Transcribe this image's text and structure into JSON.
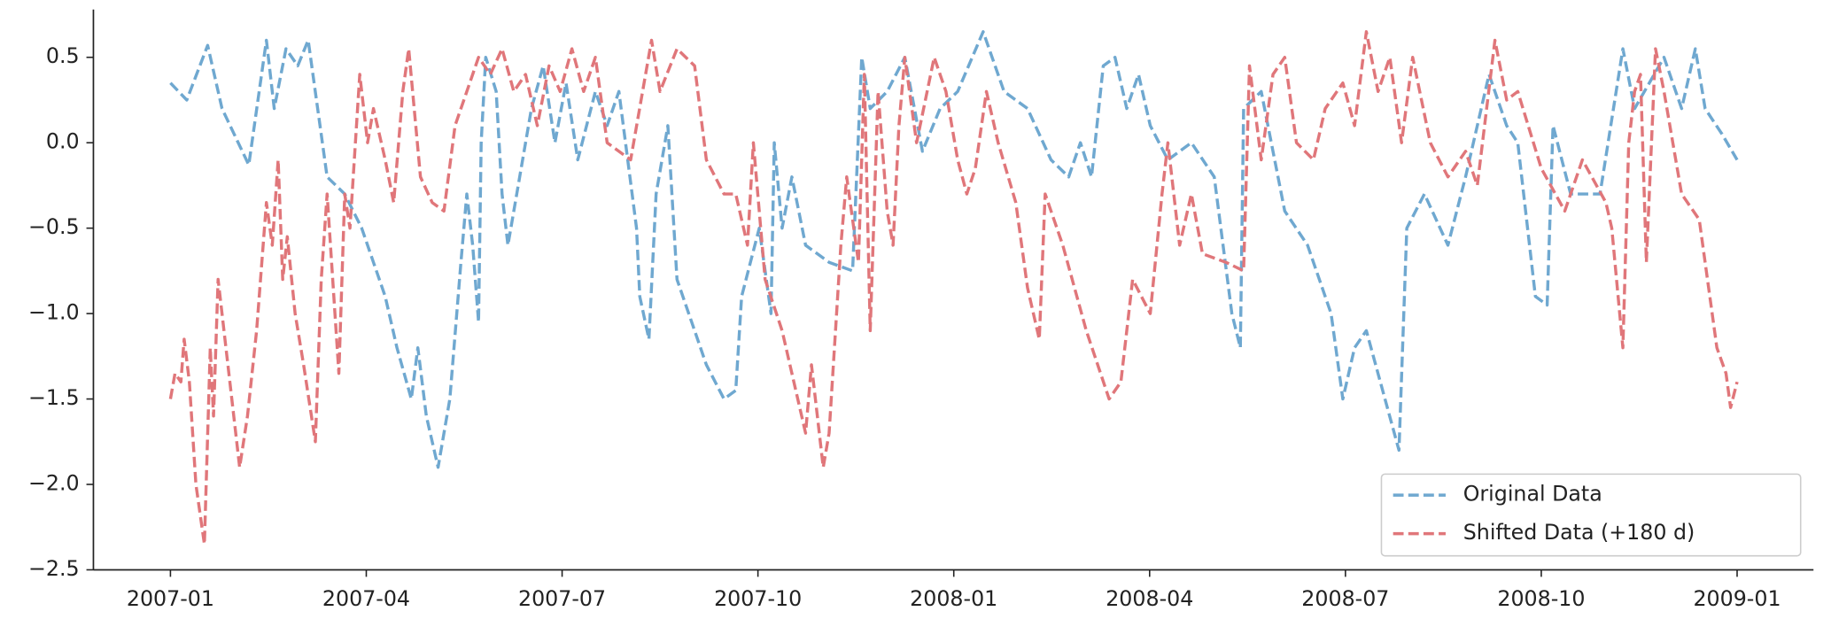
{
  "chart_data": {
    "type": "line",
    "xlim": [
      -1.18,
      25.17
    ],
    "xticks": [
      {
        "value": 0,
        "label": "2007-01"
      },
      {
        "value": 3,
        "label": "2007-04"
      },
      {
        "value": 6,
        "label": "2007-07"
      },
      {
        "value": 9,
        "label": "2007-10"
      },
      {
        "value": 12,
        "label": "2008-01"
      },
      {
        "value": 15,
        "label": "2008-04"
      },
      {
        "value": 18,
        "label": "2008-07"
      },
      {
        "value": 21,
        "label": "2008-10"
      },
      {
        "value": 24,
        "label": "2009-01"
      }
    ],
    "ylim": [
      -2.5,
      0.78
    ],
    "yticks": [
      0.5,
      {
        "value": 0,
        "label": "0.0"
      },
      {
        "value": -0.5,
        "label": "−0.5"
      },
      {
        "value": -1,
        "label": "−1.0"
      },
      {
        "value": -1.5,
        "label": "−1.5"
      },
      {
        "value": -2,
        "label": "−2.0"
      },
      {
        "value": -2.5,
        "label": "−2.5"
      }
    ],
    "legend": "lower right",
    "series": [
      {
        "name": "Original Data",
        "color": "#6fa8d0",
        "x": [
          0,
          0.25,
          0.5,
          0.57,
          0.79,
          1.2,
          1.47,
          1.59,
          1.77,
          1.95,
          2.11,
          2.4,
          2.67,
          2.93,
          3.29,
          3.47,
          3.69,
          3.79,
          3.92,
          4.1,
          4.28,
          4.45,
          4.54,
          4.63,
          4.72,
          4.76,
          4.83,
          4.99,
          5.08,
          5.17,
          5.35,
          5.53,
          5.71,
          5.89,
          6.06,
          6.24,
          6.51,
          6.69,
          6.87,
          7.14,
          7.19,
          7.33,
          7.44,
          7.62,
          7.76,
          8.03,
          8.21,
          8.48,
          8.66,
          8.75,
          9.02,
          9.2,
          9.25,
          9.37,
          9.52,
          9.73,
          10.09,
          10.45,
          10.59,
          10.72,
          10.98,
          11.25,
          11.52,
          11.79,
          12.06,
          12.45,
          12.77,
          13.13,
          13.49,
          13.76,
          13.94,
          14.11,
          14.29,
          14.47,
          14.65,
          14.83,
          15.01,
          15.28,
          15.64,
          15.99,
          16.26,
          16.39,
          16.44,
          16.71,
          17.07,
          17.42,
          17.78,
          17.96,
          18.14,
          18.32,
          18.82,
          18.94,
          19.21,
          19.57,
          19.84,
          20.2,
          20.47,
          20.64,
          20.91,
          21.09,
          21.18,
          21.45,
          21.9,
          22.25,
          22.43,
          22.88,
          23.15,
          23.36,
          23.51,
          23.77,
          24
        ],
        "values": [
          0.35,
          0.25,
          0.5,
          0.57,
          0.2,
          -0.13,
          0.6,
          0.2,
          0.55,
          0.45,
          0.6,
          -0.2,
          -0.3,
          -0.5,
          -0.9,
          -1.2,
          -1.5,
          -1.2,
          -1.6,
          -1.9,
          -1.5,
          -0.7,
          -0.3,
          -0.6,
          -1.05,
          0.0,
          0.5,
          0.3,
          -0.3,
          -0.6,
          -0.2,
          0.2,
          0.45,
          0.0,
          0.35,
          -0.1,
          0.3,
          0.1,
          0.3,
          -0.5,
          -0.9,
          -1.15,
          -0.3,
          0.1,
          -0.8,
          -1.1,
          -1.3,
          -1.5,
          -1.45,
          -0.9,
          -0.5,
          -1.0,
          0.0,
          -0.5,
          -0.2,
          -0.6,
          -0.7,
          -0.75,
          0.5,
          0.2,
          0.3,
          0.5,
          -0.05,
          0.2,
          0.3,
          0.65,
          0.3,
          0.2,
          -0.1,
          -0.2,
          0.0,
          -0.2,
          0.45,
          0.5,
          0.2,
          0.4,
          0.1,
          -0.1,
          0.0,
          -0.2,
          -1.0,
          -1.2,
          0.2,
          0.3,
          -0.4,
          -0.6,
          -1.0,
          -1.5,
          -1.2,
          -1.1,
          -1.8,
          -0.5,
          -0.3,
          -0.6,
          -0.2,
          0.4,
          0.1,
          0.0,
          -0.9,
          -0.95,
          0.1,
          -0.3,
          -0.3,
          0.55,
          0.2,
          0.5,
          0.2,
          0.55,
          0.2,
          0.05,
          -0.1
        ]
      },
      {
        "name": "Shifted Data (+180 d)",
        "color": "#e0767a",
        "x": [
          0,
          0.07,
          0.16,
          0.21,
          0.29,
          0.39,
          0.52,
          0.61,
          0.66,
          0.73,
          0.88,
          0.97,
          1.06,
          1.18,
          1.32,
          1.47,
          1.56,
          1.65,
          1.72,
          1.79,
          1.91,
          2.04,
          2.22,
          2.31,
          2.4,
          2.58,
          2.67,
          2.75,
          2.9,
          3.02,
          3.11,
          3.29,
          3.42,
          3.56,
          3.65,
          3.83,
          4.01,
          4.19,
          4.36,
          4.54,
          4.72,
          4.9,
          5.08,
          5.26,
          5.44,
          5.62,
          5.8,
          5.97,
          6.15,
          6.33,
          6.51,
          6.69,
          7.05,
          7.37,
          7.5,
          7.76,
          8.03,
          8.21,
          8.48,
          8.66,
          8.84,
          8.93,
          9.11,
          9.37,
          9.55,
          9.73,
          9.82,
          10,
          10.09,
          10.27,
          10.36,
          10.54,
          10.63,
          10.72,
          10.84,
          10.98,
          11.07,
          11.16,
          11.25,
          11.43,
          11.7,
          11.88,
          12.06,
          12.2,
          12.33,
          12.5,
          12.68,
          12.95,
          13.13,
          13.31,
          13.4,
          13.67,
          14.03,
          14.38,
          14.56,
          14.74,
          15.01,
          15.19,
          15.28,
          15.46,
          15.64,
          15.81,
          16.17,
          16.44,
          16.53,
          16.71,
          16.89,
          17.07,
          17.25,
          17.51,
          17.69,
          17.96,
          18.14,
          18.32,
          18.5,
          18.68,
          18.86,
          19.03,
          19.3,
          19.57,
          19.84,
          20.02,
          20.29,
          20.47,
          20.64,
          21,
          21.36,
          21.63,
          21.99,
          22.08,
          22.25,
          22.34,
          22.43,
          22.52,
          22.61,
          22.75,
          22.88,
          23.15,
          23.42,
          23.69,
          23.83,
          23.9,
          24
        ],
        "values": [
          -1.5,
          -1.35,
          -1.4,
          -1.15,
          -1.4,
          -2.0,
          -2.35,
          -1.2,
          -1.6,
          -0.8,
          -1.3,
          -1.6,
          -1.9,
          -1.6,
          -1.1,
          -0.35,
          -0.6,
          -0.1,
          -0.8,
          -0.55,
          -1.0,
          -1.3,
          -1.75,
          -0.8,
          -0.3,
          -1.35,
          -0.3,
          -0.5,
          0.4,
          0.0,
          0.2,
          -0.1,
          -0.35,
          0.3,
          0.55,
          -0.2,
          -0.35,
          -0.4,
          0.1,
          0.3,
          0.5,
          0.4,
          0.55,
          0.3,
          0.4,
          0.1,
          0.45,
          0.3,
          0.55,
          0.3,
          0.5,
          0.0,
          -0.1,
          0.6,
          0.3,
          0.55,
          0.45,
          -0.1,
          -0.3,
          -0.3,
          -0.6,
          0.0,
          -0.8,
          -1.1,
          -1.4,
          -1.7,
          -1.3,
          -1.9,
          -1.7,
          -0.6,
          -0.2,
          -0.7,
          0.4,
          -1.1,
          0.3,
          -0.4,
          -0.6,
          0.1,
          0.5,
          0.0,
          0.5,
          0.3,
          -0.1,
          -0.3,
          -0.15,
          0.3,
          0.0,
          -0.35,
          -0.85,
          -1.15,
          -0.3,
          -0.6,
          -1.1,
          -1.5,
          -1.4,
          -0.8,
          -1.0,
          -0.3,
          0.0,
          -0.6,
          -0.3,
          -0.65,
          -0.7,
          -0.75,
          0.45,
          -0.1,
          0.4,
          0.5,
          0.0,
          -0.1,
          0.2,
          0.35,
          0.1,
          0.65,
          0.3,
          0.5,
          0.0,
          0.5,
          0.0,
          -0.2,
          -0.05,
          -0.25,
          0.6,
          0.25,
          0.3,
          -0.15,
          -0.4,
          -0.1,
          -0.35,
          -0.5,
          -1.2,
          0.0,
          0.3,
          0.4,
          -0.7,
          0.55,
          0.3,
          -0.3,
          -0.45,
          -1.2,
          -1.35,
          -1.55,
          -1.4
        ]
      }
    ]
  }
}
